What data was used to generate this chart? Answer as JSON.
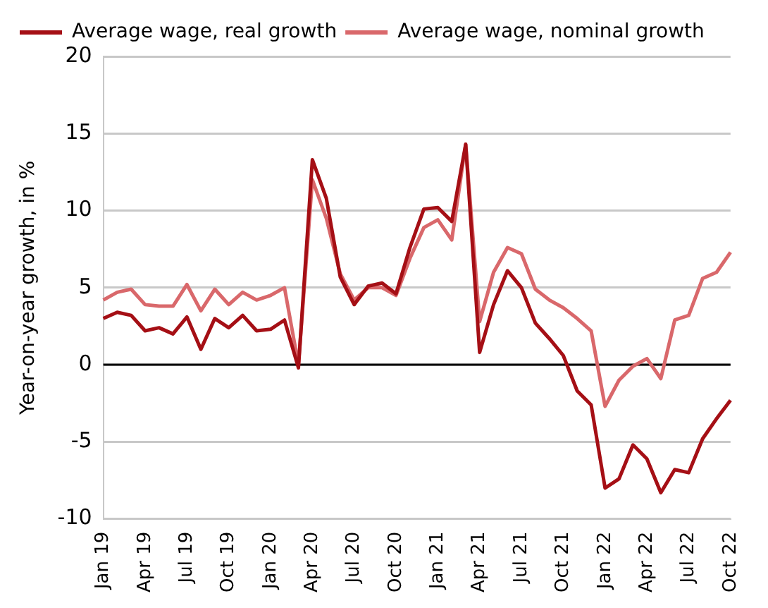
{
  "chart_data": {
    "type": "line",
    "ylabel": "Year-on-year growth, in %",
    "categories": [
      "Jan 19",
      null,
      null,
      "Apr 19",
      null,
      null,
      "Jul 19",
      null,
      null,
      "Oct 19",
      null,
      null,
      "Jan 20",
      null,
      null,
      "Apr 20",
      null,
      null,
      "Jul 20",
      null,
      null,
      "Oct 20",
      null,
      null,
      "Jan 21",
      null,
      null,
      "Apr 21",
      null,
      null,
      "Jul 21",
      null,
      null,
      "Oct 21",
      null,
      null,
      "Jan 22",
      null,
      null,
      "Apr 22",
      null,
      null,
      "Jul 22",
      null,
      null,
      "Oct 22"
    ],
    "series": [
      {
        "name": "Average wage, real growth",
        "color": "#a50f15",
        "values": [
          3.0,
          3.4,
          3.2,
          2.2,
          2.4,
          2.0,
          3.1,
          1.0,
          3.0,
          2.4,
          3.2,
          2.2,
          2.3,
          2.9,
          -0.2,
          13.3,
          10.8,
          5.7,
          3.9,
          5.1,
          5.3,
          4.6,
          7.6,
          10.1,
          10.2,
          9.3,
          14.3,
          0.8,
          3.9,
          6.1,
          5.0,
          2.7,
          1.7,
          0.6,
          -1.7,
          -2.6,
          -8.0,
          -7.4,
          -5.2,
          -6.1,
          -8.3,
          -6.8,
          -7.0,
          -4.8,
          -3.5,
          -2.3
        ]
      },
      {
        "name": "Average wage, nominal growth",
        "color": "#d9686b",
        "values": [
          4.2,
          4.7,
          4.9,
          3.9,
          3.8,
          3.8,
          5.2,
          3.5,
          4.9,
          3.9,
          4.7,
          4.2,
          4.5,
          5.0,
          0.0,
          12.0,
          9.5,
          5.9,
          4.2,
          5.0,
          5.0,
          4.5,
          6.9,
          8.9,
          9.4,
          8.1,
          14.3,
          2.8,
          6.0,
          7.6,
          7.2,
          4.9,
          4.2,
          3.7,
          3.0,
          2.2,
          -2.7,
          -1.0,
          -0.1,
          0.4,
          -0.9,
          2.9,
          3.2,
          5.6,
          6.0,
          7.3
        ]
      }
    ],
    "ylim": [
      -10,
      20
    ],
    "yticks": [
      -10,
      -5,
      0,
      5,
      10,
      15,
      20
    ],
    "grid": "y",
    "legend": "top left",
    "marker": "none",
    "line_style": "solid",
    "ref_lines": [
      {
        "axis": "y",
        "value": 0,
        "color": "#000000"
      }
    ]
  }
}
